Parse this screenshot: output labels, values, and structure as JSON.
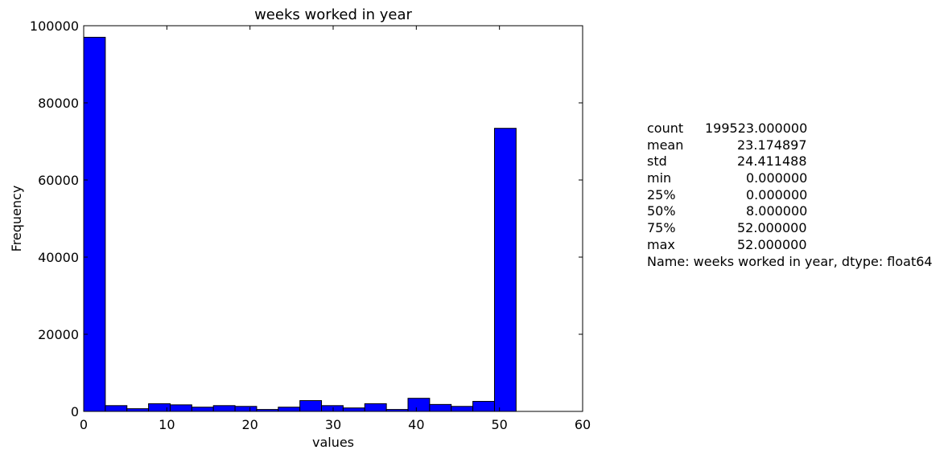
{
  "chart_data": {
    "type": "bar",
    "title": "weeks worked in year",
    "xlabel": "values",
    "ylabel": "Frequency",
    "xlim": [
      0,
      60
    ],
    "ylim": [
      0,
      100000
    ],
    "xticks": [
      "0",
      "10",
      "20",
      "30",
      "40",
      "50",
      "60"
    ],
    "yticks": [
      "0",
      "20000",
      "40000",
      "60000",
      "80000",
      "100000"
    ],
    "bar_color": "#0000ff",
    "bins": [
      {
        "start": 0.0,
        "end": 2.6,
        "value": 97000
      },
      {
        "start": 2.6,
        "end": 5.2,
        "value": 1500
      },
      {
        "start": 5.2,
        "end": 7.8,
        "value": 700
      },
      {
        "start": 7.8,
        "end": 10.4,
        "value": 2000
      },
      {
        "start": 10.4,
        "end": 13.0,
        "value": 1700
      },
      {
        "start": 13.0,
        "end": 15.6,
        "value": 1100
      },
      {
        "start": 15.6,
        "end": 18.2,
        "value": 1500
      },
      {
        "start": 18.2,
        "end": 20.8,
        "value": 1300
      },
      {
        "start": 20.8,
        "end": 23.4,
        "value": 500
      },
      {
        "start": 23.4,
        "end": 26.0,
        "value": 1100
      },
      {
        "start": 26.0,
        "end": 28.6,
        "value": 2800
      },
      {
        "start": 28.6,
        "end": 31.2,
        "value": 1500
      },
      {
        "start": 31.2,
        "end": 33.8,
        "value": 900
      },
      {
        "start": 33.8,
        "end": 36.4,
        "value": 2000
      },
      {
        "start": 36.4,
        "end": 39.0,
        "value": 500
      },
      {
        "start": 39.0,
        "end": 41.6,
        "value": 3400
      },
      {
        "start": 41.6,
        "end": 44.2,
        "value": 1800
      },
      {
        "start": 44.2,
        "end": 46.8,
        "value": 1300
      },
      {
        "start": 46.8,
        "end": 49.4,
        "value": 2600
      },
      {
        "start": 49.4,
        "end": 52.0,
        "value": 73400
      }
    ]
  },
  "stats": {
    "rows": [
      {
        "label": "count",
        "value": "199523.000000"
      },
      {
        "label": "mean",
        "value": "23.174897"
      },
      {
        "label": "std",
        "value": "24.411488"
      },
      {
        "label": "min",
        "value": "0.000000"
      },
      {
        "label": "25%",
        "value": "0.000000"
      },
      {
        "label": "50%",
        "value": "8.000000"
      },
      {
        "label": "75%",
        "value": "52.000000"
      },
      {
        "label": "max",
        "value": "52.000000"
      }
    ],
    "footer": "Name: weeks worked in year, dtype: float64"
  }
}
